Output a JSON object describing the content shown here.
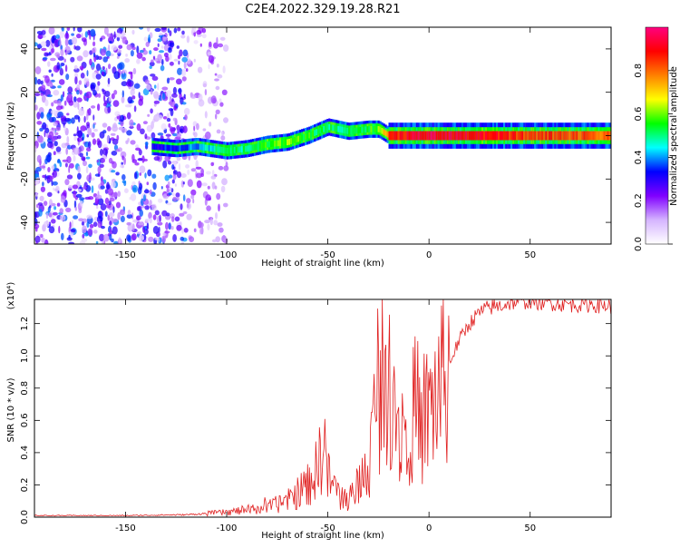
{
  "title": "C2E4.2022.329.19.28.R21",
  "chart_data": [
    {
      "type": "heatmap",
      "xlabel": "Height of straight line (km)",
      "ylabel": "Frequency (Hz)",
      "xlim": [
        -195,
        90
      ],
      "ylim": [
        -50,
        50
      ],
      "x_ticks": [
        -150,
        -100,
        -50,
        0,
        50
      ],
      "y_ticks": [
        -40,
        -20,
        0,
        20,
        40
      ],
      "colorbar": {
        "label": "Normalized spectral amplitude",
        "range": [
          0,
          1
        ],
        "ticks": [
          "0.0",
          "0.2",
          "0.4",
          "0.6",
          "0.8"
        ],
        "colors": [
          "#ffffff",
          "#d5b4ff",
          "#8000ff",
          "#0000ff",
          "#00ffff",
          "#00ff00",
          "#ffff00",
          "#ff8000",
          "#ff0000",
          "#ff0080"
        ]
      },
      "ridge": {
        "x": [
          -137,
          -125,
          -115,
          -100,
          -90,
          -80,
          -70,
          -60,
          -50,
          -40,
          -30,
          -25,
          -20,
          -10,
          0,
          20,
          50,
          90
        ],
        "y": [
          -5,
          -6,
          -5,
          -7,
          -6,
          -4,
          -3,
          0,
          4,
          2,
          3,
          3,
          0,
          0,
          0,
          0,
          0,
          0
        ],
        "amplitude": [
          0.3,
          0.35,
          0.4,
          0.5,
          0.5,
          0.55,
          0.6,
          0.55,
          0.5,
          0.5,
          0.55,
          0.6,
          0.85,
          0.9,
          0.95,
          0.9,
          0.85,
          0.8
        ]
      }
    },
    {
      "type": "line",
      "xlabel": "Height of straight line (km)",
      "ylabel": "SNR (10 * v/v)",
      "y_multiplier": "(x10⁴)",
      "xlim": [
        -195,
        90
      ],
      "ylim": [
        0,
        1.35
      ],
      "x_ticks": [
        -150,
        -100,
        -50,
        0,
        50
      ],
      "y_ticks": [
        "0.0",
        "0.2",
        "0.4",
        "0.6",
        "0.8",
        "1.0",
        "1.2"
      ],
      "line_color": "#e02020",
      "series": [
        {
          "x": [
            -195,
            -150,
            -120,
            -100,
            -80,
            -70,
            -60,
            -55,
            -52,
            -50,
            -45,
            -40,
            -35,
            -30,
            -27,
            -25,
            -22,
            -20,
            -17,
            -15,
            -12,
            -10,
            -5,
            0,
            5,
            10,
            15,
            20,
            25,
            30,
            35,
            40,
            45,
            50,
            60,
            70,
            80,
            90
          ],
          "y": [
            0.01,
            0.01,
            0.015,
            0.03,
            0.06,
            0.1,
            0.2,
            0.3,
            0.5,
            0.25,
            0.15,
            0.1,
            0.2,
            0.3,
            0.6,
            0.9,
            0.7,
            1.0,
            0.8,
            0.55,
            0.6,
            0.65,
            0.6,
            0.65,
            0.8,
            0.95,
            1.1,
            1.2,
            1.27,
            1.3,
            1.31,
            1.33,
            1.34,
            1.34,
            1.33,
            1.32,
            1.32,
            1.31
          ]
        }
      ]
    }
  ]
}
